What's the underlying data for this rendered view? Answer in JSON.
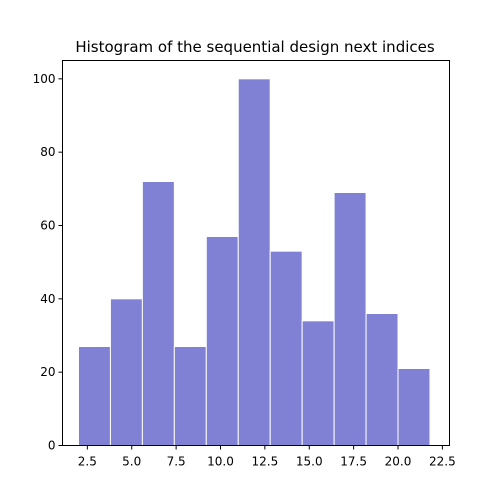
{
  "chart_data": {
    "type": "bar",
    "title": "Histogram of the sequential design next indices",
    "xlabel": "",
    "ylabel": "",
    "xlim": [
      1.1,
      22.9
    ],
    "ylim": [
      0,
      105
    ],
    "xticks": [
      2.5,
      5.0,
      7.5,
      10.0,
      12.5,
      15.0,
      17.5,
      20.0,
      22.5
    ],
    "xtick_labels": [
      "2.5",
      "5.0",
      "7.5",
      "10.0",
      "12.5",
      "15.0",
      "17.5",
      "20.0",
      "22.5"
    ],
    "yticks": [
      0,
      20,
      40,
      60,
      80,
      100
    ],
    "ytick_labels": [
      "0",
      "20",
      "40",
      "60",
      "80",
      "100"
    ],
    "bin_edges": [
      2.0,
      3.8,
      5.6,
      7.4,
      9.2,
      11.0,
      12.8,
      14.6,
      16.4,
      18.2,
      20.0,
      21.8
    ],
    "values": [
      27,
      40,
      72,
      27,
      57,
      100,
      53,
      34,
      69,
      36,
      21
    ],
    "bar_color": "#8080d5",
    "grid": false,
    "legend": "none"
  }
}
